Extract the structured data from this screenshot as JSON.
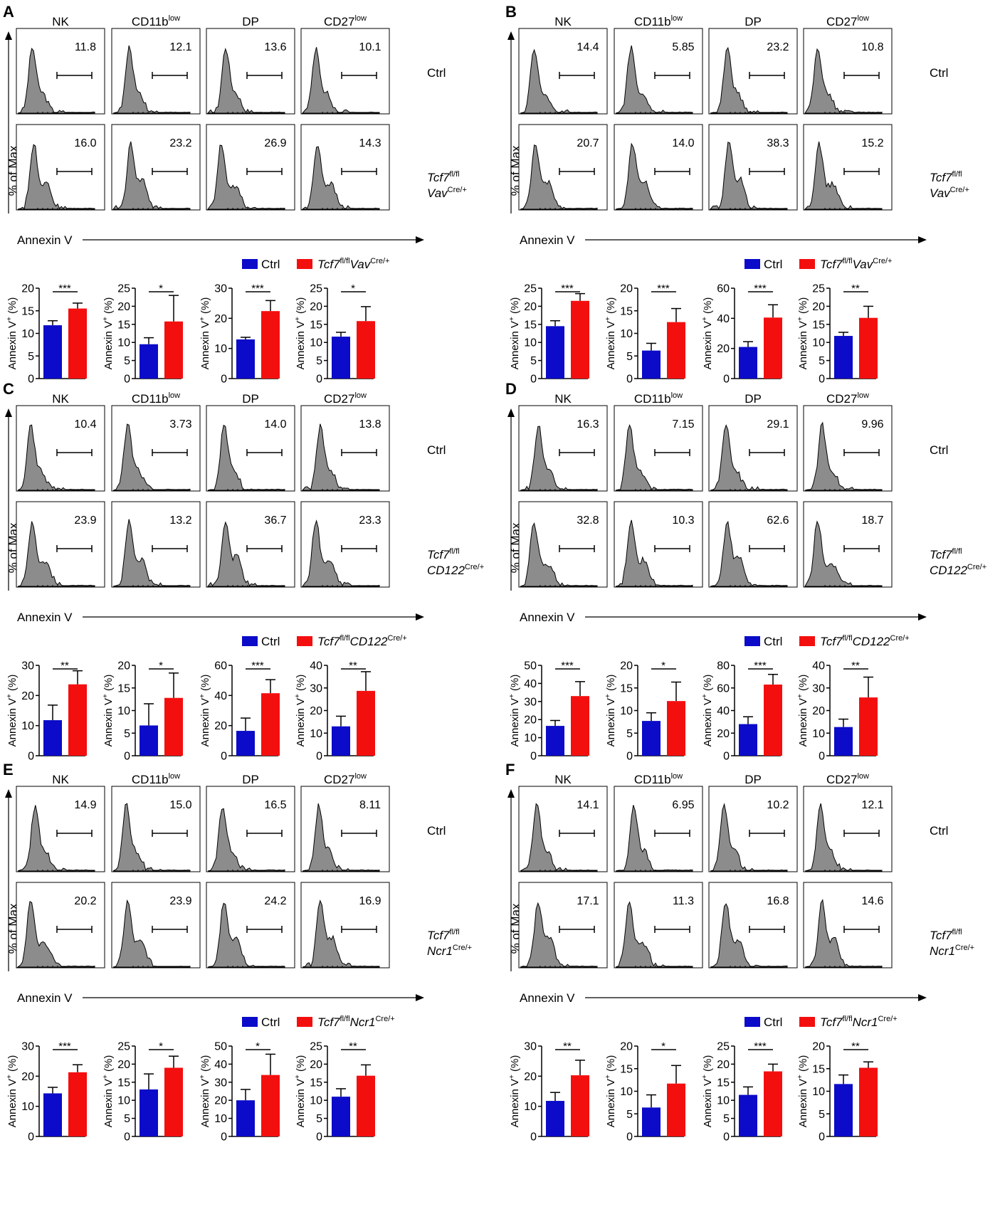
{
  "figure": {
    "histogram_y_label": "% of Max",
    "histogram_x_label": "Annexin V",
    "bar_y_label": "Annexin V+ (%)",
    "populations": [
      "NK",
      "CD11b",
      "DP",
      "CD27"
    ],
    "population_superscripts": [
      "",
      "low",
      "",
      "low"
    ],
    "ctrl_label": "Ctrl",
    "colors": {
      "ctrl": "#0b0bc9",
      "ko": "#f40f0f",
      "histogram_fill": "#8c8c8c"
    }
  },
  "chart_data": [
    {
      "panel": "A",
      "type": "bar",
      "ko_line1": "Tcf7",
      "ko_line1_sup": "fl/fl",
      "ko_line2": "Vav",
      "ko_line2_sup": "Cre/+",
      "gate_values": {
        "Ctrl": [
          "11.8",
          "12.1",
          "13.6",
          "10.1"
        ],
        "KO": [
          "16.0",
          "23.2",
          "26.9",
          "14.3"
        ]
      },
      "categories": [
        "NK",
        "CD11blow",
        "DP",
        "CD27low"
      ],
      "series": [
        {
          "name": "Ctrl",
          "values": [
            11.8,
            9.5,
            13.0,
            11.6
          ],
          "errors": [
            1.0,
            1.8,
            0.7,
            1.2
          ]
        },
        {
          "name": "Tcf7fl/flVavCre/+",
          "values": [
            15.5,
            15.8,
            22.4,
            15.9
          ],
          "errors": [
            1.2,
            7.2,
            3.5,
            4.0
          ]
        }
      ],
      "significance": [
        "***",
        "*",
        "***",
        "*"
      ],
      "axes": [
        {
          "ylim": [
            0,
            20
          ],
          "ticks": [
            0,
            5,
            10,
            15,
            20
          ]
        },
        {
          "ylim": [
            0,
            25
          ],
          "ticks": [
            0,
            5,
            10,
            15,
            20,
            25
          ]
        },
        {
          "ylim": [
            0,
            30
          ],
          "ticks": [
            0,
            10,
            20,
            30
          ]
        },
        {
          "ylim": [
            0,
            25
          ],
          "ticks": [
            0,
            5,
            10,
            15,
            20,
            25
          ]
        }
      ]
    },
    {
      "panel": "B",
      "type": "bar",
      "ko_line1": "Tcf7",
      "ko_line1_sup": "fl/fl",
      "ko_line2": "Vav",
      "ko_line2_sup": "Cre/+",
      "gate_values": {
        "Ctrl": [
          "14.4",
          "5.85",
          "23.2",
          "10.8"
        ],
        "KO": [
          "20.7",
          "14.0",
          "38.3",
          "15.2"
        ]
      },
      "categories": [
        "NK",
        "CD11blow",
        "DP",
        "CD27low"
      ],
      "series": [
        {
          "name": "Ctrl",
          "values": [
            14.5,
            6.2,
            21.0,
            11.8
          ],
          "errors": [
            1.5,
            1.6,
            3.5,
            1.0
          ]
        },
        {
          "name": "Tcf7fl/flVavCre/+",
          "values": [
            21.5,
            12.5,
            40.5,
            16.8
          ],
          "errors": [
            2.0,
            3.0,
            8.5,
            3.2
          ]
        }
      ],
      "significance": [
        "***",
        "***",
        "***",
        "**"
      ],
      "axes": [
        {
          "ylim": [
            0,
            25
          ],
          "ticks": [
            0,
            5,
            10,
            15,
            20,
            25
          ]
        },
        {
          "ylim": [
            0,
            20
          ],
          "ticks": [
            0,
            5,
            10,
            15,
            20
          ]
        },
        {
          "ylim": [
            0,
            60
          ],
          "ticks": [
            0,
            20,
            40,
            60
          ]
        },
        {
          "ylim": [
            0,
            25
          ],
          "ticks": [
            0,
            5,
            10,
            15,
            20,
            25
          ]
        }
      ]
    },
    {
      "panel": "C",
      "type": "bar",
      "ko_line1": "Tcf7",
      "ko_line1_sup": "fl/fl",
      "ko_line2": "CD122",
      "ko_line2_sup": "Cre/+",
      "gate_values": {
        "Ctrl": [
          "10.4",
          "3.73",
          "14.0",
          "13.8"
        ],
        "KO": [
          "23.9",
          "13.2",
          "36.7",
          "23.3"
        ]
      },
      "categories": [
        "NK",
        "CD11blow",
        "DP",
        "CD27low"
      ],
      "series": [
        {
          "name": "Ctrl",
          "values": [
            11.8,
            6.7,
            16.5,
            13.0
          ],
          "errors": [
            5.0,
            4.8,
            8.5,
            4.5
          ]
        },
        {
          "name": "Tcf7fl/flCD122Cre/+",
          "values": [
            23.7,
            12.8,
            41.5,
            28.7
          ],
          "errors": [
            4.5,
            5.5,
            9.0,
            8.5
          ]
        }
      ],
      "significance": [
        "**",
        "*",
        "***",
        "**"
      ],
      "axes": [
        {
          "ylim": [
            0,
            30
          ],
          "ticks": [
            0,
            10,
            20,
            30
          ]
        },
        {
          "ylim": [
            0,
            20
          ],
          "ticks": [
            0,
            5,
            10,
            15,
            20
          ]
        },
        {
          "ylim": [
            0,
            60
          ],
          "ticks": [
            0,
            20,
            40,
            60
          ]
        },
        {
          "ylim": [
            0,
            40
          ],
          "ticks": [
            0,
            10,
            20,
            30,
            40
          ]
        }
      ]
    },
    {
      "panel": "D",
      "type": "bar",
      "ko_line1": "Tcf7",
      "ko_line1_sup": "fl/fl",
      "ko_line2": "CD122",
      "ko_line2_sup": "Cre/+",
      "gate_values": {
        "Ctrl": [
          "16.3",
          "7.15",
          "29.1",
          "9.96"
        ],
        "KO": [
          "32.8",
          "10.3",
          "62.6",
          "18.7"
        ]
      },
      "categories": [
        "NK",
        "CD11blow",
        "DP",
        "CD27low"
      ],
      "series": [
        {
          "name": "Ctrl",
          "values": [
            16.5,
            7.7,
            28.0,
            12.7
          ],
          "errors": [
            3.0,
            1.8,
            6.5,
            3.5
          ]
        },
        {
          "name": "Tcf7fl/flCD122Cre/+",
          "values": [
            33.0,
            12.1,
            63.0,
            25.8
          ],
          "errors": [
            8.0,
            4.2,
            9.0,
            9.0
          ]
        }
      ],
      "significance": [
        "***",
        "*",
        "***",
        "**"
      ],
      "axes": [
        {
          "ylim": [
            0,
            50
          ],
          "ticks": [
            0,
            10,
            20,
            30,
            40,
            50
          ]
        },
        {
          "ylim": [
            0,
            20
          ],
          "ticks": [
            0,
            5,
            10,
            15,
            20
          ]
        },
        {
          "ylim": [
            0,
            80
          ],
          "ticks": [
            0,
            20,
            40,
            60,
            80
          ]
        },
        {
          "ylim": [
            0,
            40
          ],
          "ticks": [
            0,
            10,
            20,
            30,
            40
          ]
        }
      ]
    },
    {
      "panel": "E",
      "type": "bar",
      "ko_line1": "Tcf7",
      "ko_line1_sup": "fl/fl",
      "ko_line2": "Ncr1",
      "ko_line2_sup": "Cre/+",
      "gate_values": {
        "Ctrl": [
          "14.9",
          "15.0",
          "16.5",
          "8.11"
        ],
        "KO": [
          "20.2",
          "23.9",
          "24.2",
          "16.9"
        ]
      },
      "categories": [
        "NK",
        "CD11blow",
        "DP",
        "CD27low"
      ],
      "series": [
        {
          "name": "Ctrl",
          "values": [
            14.3,
            13.0,
            20.0,
            11.0
          ],
          "errors": [
            2.0,
            4.3,
            6.0,
            2.2
          ]
        },
        {
          "name": "Tcf7fl/flNcr1Cre/+",
          "values": [
            21.3,
            19.0,
            34.0,
            16.8
          ],
          "errors": [
            2.5,
            3.2,
            11.5,
            3.0
          ]
        }
      ],
      "significance": [
        "***",
        "*",
        "*",
        "**"
      ],
      "axes": [
        {
          "ylim": [
            0,
            30
          ],
          "ticks": [
            0,
            10,
            20,
            30
          ]
        },
        {
          "ylim": [
            0,
            25
          ],
          "ticks": [
            0,
            5,
            10,
            15,
            20,
            25
          ]
        },
        {
          "ylim": [
            0,
            50
          ],
          "ticks": [
            0,
            10,
            20,
            30,
            40,
            50
          ]
        },
        {
          "ylim": [
            0,
            25
          ],
          "ticks": [
            0,
            5,
            10,
            15,
            20,
            25
          ]
        }
      ]
    },
    {
      "panel": "F",
      "type": "bar",
      "ko_line1": "Tcf7",
      "ko_line1_sup": "fl/fl",
      "ko_line2": "Ncr1",
      "ko_line2_sup": "Cre/+",
      "gate_values": {
        "Ctrl": [
          "14.1",
          "6.95",
          "10.2",
          "12.1"
        ],
        "KO": [
          "17.1",
          "11.3",
          "16.8",
          "14.6"
        ]
      },
      "categories": [
        "NK",
        "CD11blow",
        "DP",
        "CD27low"
      ],
      "series": [
        {
          "name": "Ctrl",
          "values": [
            11.8,
            6.4,
            11.5,
            11.6
          ],
          "errors": [
            2.8,
            2.8,
            2.2,
            2.0
          ]
        },
        {
          "name": "Tcf7fl/flNcr1Cre/+",
          "values": [
            20.3,
            11.7,
            18.0,
            15.2
          ],
          "errors": [
            5.0,
            4.0,
            2.0,
            1.3
          ]
        }
      ],
      "significance": [
        "**",
        "*",
        "***",
        "**"
      ],
      "axes": [
        {
          "ylim": [
            0,
            30
          ],
          "ticks": [
            0,
            10,
            20,
            30
          ]
        },
        {
          "ylim": [
            0,
            20
          ],
          "ticks": [
            0,
            5,
            10,
            15,
            20
          ]
        },
        {
          "ylim": [
            0,
            25
          ],
          "ticks": [
            0,
            5,
            10,
            15,
            20,
            25
          ]
        },
        {
          "ylim": [
            0,
            20
          ],
          "ticks": [
            0,
            5,
            10,
            15,
            20
          ]
        }
      ]
    }
  ]
}
